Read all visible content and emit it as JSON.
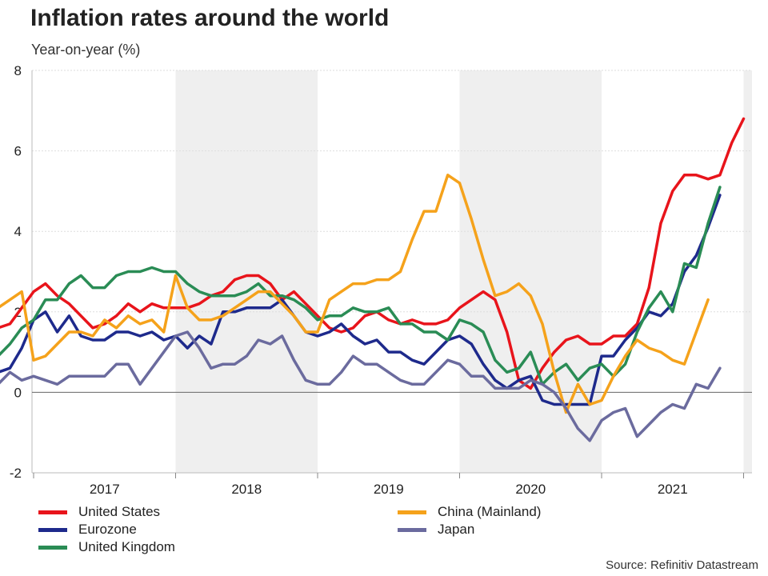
{
  "chart_data": {
    "type": "line",
    "title": "Inflation rates around the world",
    "subtitle": "Year-on-year (%)",
    "ylabel": "Year-on-year (%)",
    "xlabel": "",
    "ylim": [
      -2,
      8
    ],
    "yticks": [
      -2,
      0,
      2,
      4,
      6,
      8
    ],
    "x_start": "2016-08",
    "years": [
      "2017",
      "2018",
      "2019",
      "2020",
      "2021"
    ],
    "shaded_years": [
      "2018",
      "2020"
    ],
    "gridlines": true,
    "series": [
      {
        "name": "United States",
        "color": "#e8141b",
        "values": [
          1.1,
          1.5,
          1.6,
          1.7,
          2.1,
          2.5,
          2.7,
          2.4,
          2.2,
          1.9,
          1.6,
          1.7,
          1.9,
          2.2,
          2.0,
          2.2,
          2.1,
          2.1,
          2.1,
          2.2,
          2.4,
          2.5,
          2.8,
          2.9,
          2.9,
          2.7,
          2.3,
          2.5,
          2.2,
          1.9,
          1.6,
          1.5,
          1.6,
          1.9,
          2.0,
          1.8,
          1.7,
          1.8,
          1.7,
          1.7,
          1.8,
          2.1,
          2.3,
          2.5,
          2.3,
          1.5,
          0.3,
          0.1,
          0.6,
          1.0,
          1.3,
          1.4,
          1.2,
          1.2,
          1.4,
          1.4,
          1.7,
          2.6,
          4.2,
          5.0,
          5.4,
          5.4,
          5.3,
          5.4,
          6.2,
          6.8
        ]
      },
      {
        "name": "Eurozone",
        "color": "#1e2a8c",
        "values": [
          0.2,
          0.4,
          0.5,
          0.6,
          1.1,
          1.8,
          2.0,
          1.5,
          1.9,
          1.4,
          1.3,
          1.3,
          1.5,
          1.5,
          1.4,
          1.5,
          1.3,
          1.4,
          1.1,
          1.4,
          1.2,
          2.0,
          2.0,
          2.1,
          2.1,
          2.1,
          2.3,
          1.9,
          1.5,
          1.4,
          1.5,
          1.7,
          1.4,
          1.2,
          1.3,
          1.0,
          1.0,
          0.8,
          0.7,
          1.0,
          1.3,
          1.4,
          1.2,
          0.7,
          0.3,
          0.1,
          0.3,
          0.4,
          -0.2,
          -0.3,
          -0.3,
          -0.3,
          -0.3,
          0.9,
          0.9,
          1.3,
          1.6,
          2.0,
          1.9,
          2.2,
          3.0,
          3.4,
          4.1,
          4.9
        ]
      },
      {
        "name": "United Kingdom",
        "color": "#2a8c55",
        "values": [
          0.6,
          1.0,
          0.9,
          1.2,
          1.6,
          1.8,
          2.3,
          2.3,
          2.7,
          2.9,
          2.6,
          2.6,
          2.9,
          3.0,
          3.0,
          3.1,
          3.0,
          3.0,
          2.7,
          2.5,
          2.4,
          2.4,
          2.4,
          2.5,
          2.7,
          2.4,
          2.4,
          2.3,
          2.1,
          1.8,
          1.9,
          1.9,
          2.1,
          2.0,
          2.0,
          2.1,
          1.7,
          1.7,
          1.5,
          1.5,
          1.3,
          1.8,
          1.7,
          1.5,
          0.8,
          0.5,
          0.6,
          1.0,
          0.2,
          0.5,
          0.7,
          0.3,
          0.6,
          0.7,
          0.4,
          0.7,
          1.5,
          2.1,
          2.5,
          2.0,
          3.2,
          3.1,
          4.2,
          5.1
        ]
      },
      {
        "name": "China (Mainland)",
        "color": "#f5a21b",
        "values": [
          1.3,
          1.9,
          2.1,
          2.3,
          2.5,
          0.8,
          0.9,
          1.2,
          1.5,
          1.5,
          1.4,
          1.8,
          1.6,
          1.9,
          1.7,
          1.8,
          1.5,
          2.9,
          2.1,
          1.8,
          1.8,
          1.9,
          2.1,
          2.3,
          2.5,
          2.5,
          2.2,
          1.9,
          1.5,
          1.5,
          2.3,
          2.5,
          2.7,
          2.7,
          2.8,
          2.8,
          3.0,
          3.8,
          4.5,
          4.5,
          5.4,
          5.2,
          4.3,
          3.3,
          2.4,
          2.5,
          2.7,
          2.4,
          1.7,
          0.5,
          -0.5,
          0.2,
          -0.3,
          -0.2,
          0.4,
          0.9,
          1.3,
          1.1,
          1.0,
          0.8,
          0.7,
          1.5,
          2.3
        ]
      },
      {
        "name": "Japan",
        "color": "#6b6b9e",
        "values": [
          -0.5,
          -0.5,
          0.2,
          0.5,
          0.3,
          0.4,
          0.3,
          0.2,
          0.4,
          0.4,
          0.4,
          0.4,
          0.7,
          0.7,
          0.2,
          0.6,
          1.0,
          1.4,
          1.5,
          1.1,
          0.6,
          0.7,
          0.7,
          0.9,
          1.3,
          1.2,
          1.4,
          0.8,
          0.3,
          0.2,
          0.2,
          0.5,
          0.9,
          0.7,
          0.7,
          0.5,
          0.3,
          0.2,
          0.2,
          0.5,
          0.8,
          0.7,
          0.4,
          0.4,
          0.1,
          0.1,
          0.1,
          0.3,
          0.2,
          0.0,
          -0.4,
          -0.9,
          -1.2,
          -0.7,
          -0.5,
          -0.4,
          -1.1,
          -0.8,
          -0.5,
          -0.3,
          -0.4,
          0.2,
          0.1,
          0.6
        ]
      }
    ]
  },
  "legend": {
    "us": "United States",
    "china": "China (Mainland)",
    "eurozone": "Eurozone",
    "japan": "Japan",
    "uk": "United Kingdom"
  },
  "colors": {
    "us": "#e8141b",
    "china": "#f5a21b",
    "eurozone": "#1e2a8c",
    "japan": "#6b6b9e",
    "uk": "#2a8c55",
    "shade": "#efefef"
  },
  "source": "Source: Refinitiv Datastream"
}
